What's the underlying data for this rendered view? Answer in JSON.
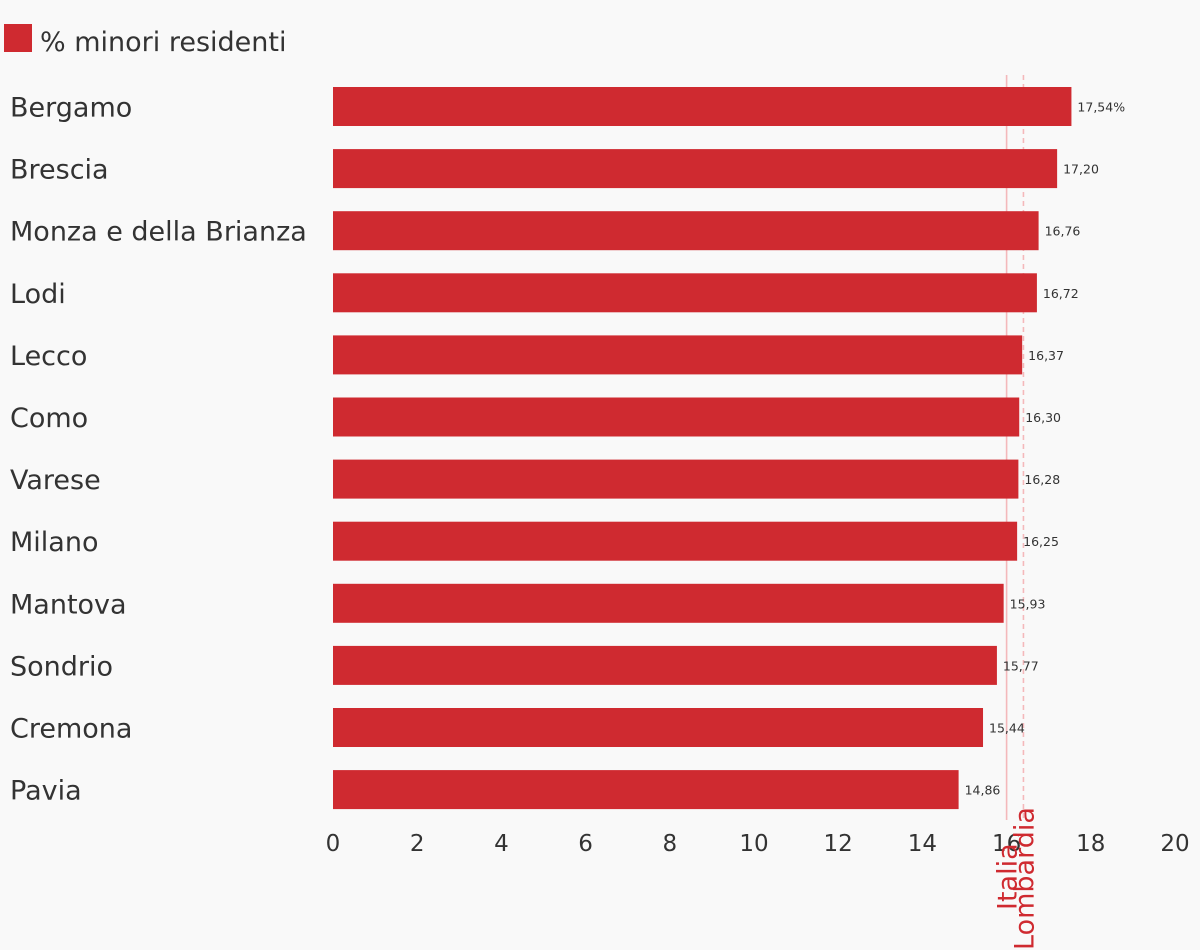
{
  "chart_data": {
    "type": "bar",
    "orientation": "horizontal",
    "series": [
      {
        "name": "% minori residenti",
        "color": "#cf2a30",
        "values": [
          17.54,
          17.2,
          16.76,
          16.72,
          16.37,
          16.3,
          16.28,
          16.25,
          15.93,
          15.77,
          15.44,
          14.86
        ]
      }
    ],
    "categories": [
      "Bergamo",
      "Brescia",
      "Monza e della Brianza",
      "Lodi",
      "Lecco",
      "Como",
      "Varese",
      "Milano",
      "Mantova",
      "Sondrio",
      "Cremona",
      "Pavia"
    ],
    "value_labels": [
      "17,54%",
      "17,20",
      "16,76",
      "16,72",
      "16,37",
      "16,30",
      "16,28",
      "16,25",
      "15,93",
      "15,77",
      "15,44",
      "14,86"
    ],
    "xlim": [
      0,
      20
    ],
    "xticks": [
      "0",
      "2",
      "4",
      "6",
      "8",
      "10",
      "12",
      "14",
      "16",
      "18",
      "20"
    ],
    "reference_lines": [
      {
        "label": "Italia",
        "value": 16.0,
        "style": "solid",
        "color": "#f4b8bb",
        "text_color": "#cf2a30"
      },
      {
        "label": "Lombardia",
        "value": 16.4,
        "style": "dashed",
        "color": "#f4b8bb",
        "text_color": "#cf2a30"
      }
    ],
    "legend": {
      "label": "% minori residenti",
      "color": "#cf2a30",
      "position": "top-left"
    },
    "grid": false,
    "title": "",
    "xlabel": "",
    "ylabel": ""
  }
}
